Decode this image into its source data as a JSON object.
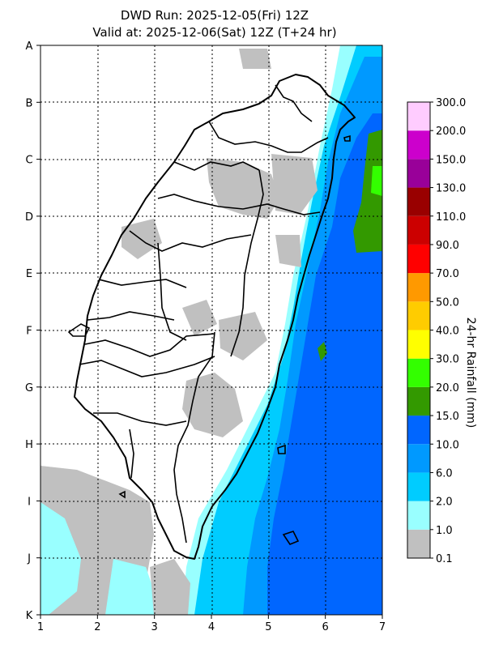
{
  "title": {
    "line1": "DWD Run: 2025-12-05(Fri) 12Z",
    "line2": "Valid at: 2025-12-06(Sat) 12Z (T+24 hr)"
  },
  "axes": {
    "x_labels": [
      "1",
      "2",
      "3",
      "4",
      "5",
      "6",
      "7"
    ],
    "y_labels": [
      "A",
      "B",
      "C",
      "D",
      "E",
      "F",
      "G",
      "H",
      "I",
      "J",
      "K"
    ],
    "grid": true
  },
  "colorbar": {
    "title": "24-hr Rainfall (mm)",
    "levels": [
      "0.1",
      "1.0",
      "2.0",
      "6.0",
      "10.0",
      "15.0",
      "20.0",
      "30.0",
      "40.0",
      "50.0",
      "70.0",
      "90.0",
      "110.0",
      "130.0",
      "150.0",
      "200.0",
      "300.0"
    ],
    "colors": [
      "#c0c0c0",
      "#99ffff",
      "#00ccff",
      "#0099ff",
      "#0066ff",
      "#339900",
      "#33ff00",
      "#ffff00",
      "#ffcc00",
      "#ff9900",
      "#ff0000",
      "#cc0000",
      "#990000",
      "#990099",
      "#cc00cc",
      "#ffccff"
    ]
  },
  "rain_colors": {
    "r0p1": "#c0c0c0",
    "r1": "#99ffff",
    "r2": "#00ccff",
    "r6": "#0099ff",
    "r10": "#0066ff",
    "r15": "#339900",
    "r20": "#33ff00"
  }
}
